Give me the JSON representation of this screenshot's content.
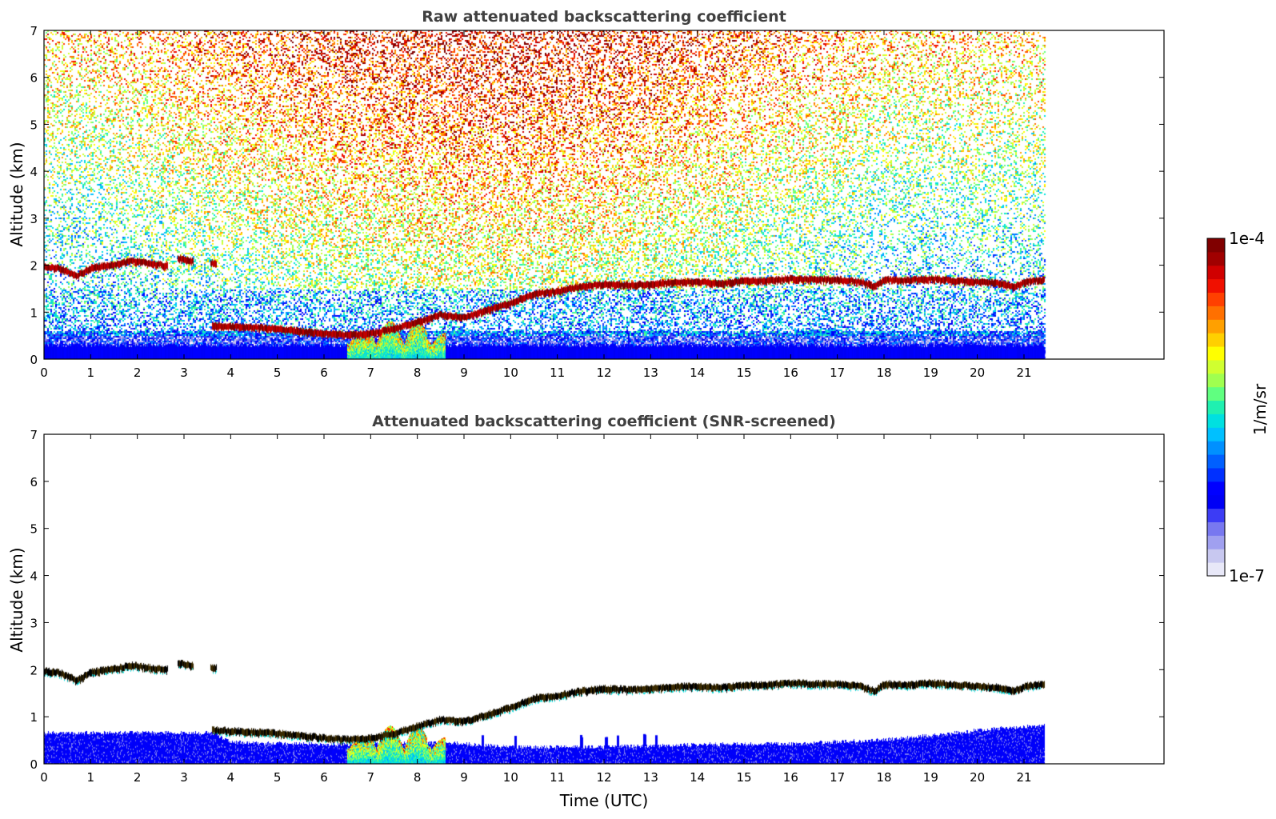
{
  "chart_data": [
    {
      "type": "heatmap",
      "title": "Raw attenuated backscattering coefficient",
      "xlabel": "",
      "ylabel": "Altitude (km)",
      "xlim": [
        0,
        24
      ],
      "ylim": [
        0,
        7
      ],
      "x_ticks": [
        "0",
        "1",
        "2",
        "3",
        "4",
        "5",
        "6",
        "7",
        "8",
        "9",
        "10",
        "11",
        "12",
        "13",
        "14",
        "15",
        "16",
        "17",
        "18",
        "19",
        "20",
        "21"
      ],
      "y_ticks": [
        "0",
        "1",
        "2",
        "3",
        "4",
        "5",
        "6",
        "7"
      ],
      "data_end_time": 21.45,
      "noise": "high-altitude background noise (daytime solar), strongest between ~7 and ~17 UTC",
      "cloud_layer_km": {
        "time": [
          0,
          0.3,
          0.7,
          1.0,
          1.5,
          1.9,
          2.2,
          2.6,
          2.9,
          3.1,
          3.6,
          3.7
        ],
        "altitude": [
          1.97,
          1.95,
          1.78,
          1.95,
          2.02,
          2.1,
          2.05,
          2.0,
          2.15,
          2.1,
          2.05,
          2.03
        ]
      },
      "low_layer_km": {
        "time": [
          3.6,
          4.0,
          4.5,
          5.0,
          5.5,
          6.0,
          6.5,
          7.0,
          7.5,
          8.0,
          8.5,
          9.0,
          9.5,
          10.0,
          10.5,
          11.0,
          11.5,
          12.0,
          12.5,
          13.0,
          13.5,
          14.0,
          14.5,
          15.0,
          15.5,
          16.0,
          16.5,
          17.0,
          17.5,
          17.8,
          18.0,
          18.5,
          19.0,
          19.5,
          20.0,
          20.5,
          20.8,
          21.0,
          21.45
        ],
        "altitude": [
          0.72,
          0.7,
          0.68,
          0.65,
          0.6,
          0.55,
          0.52,
          0.55,
          0.65,
          0.8,
          0.95,
          0.9,
          1.05,
          1.2,
          1.4,
          1.45,
          1.55,
          1.6,
          1.58,
          1.6,
          1.65,
          1.65,
          1.62,
          1.67,
          1.68,
          1.72,
          1.7,
          1.7,
          1.65,
          1.55,
          1.7,
          1.68,
          1.72,
          1.68,
          1.65,
          1.62,
          1.55,
          1.65,
          1.7
        ]
      },
      "aerosol_region": {
        "time": [
          6.5,
          8.6
        ],
        "altitude": [
          0,
          0.8
        ]
      }
    },
    {
      "type": "heatmap",
      "title": "Attenuated backscattering coefficient (SNR-screened)",
      "xlabel": "Time (UTC)",
      "ylabel": "Altitude (km)",
      "xlim": [
        0,
        24
      ],
      "ylim": [
        0,
        7
      ],
      "x_ticks": [
        "0",
        "1",
        "2",
        "3",
        "4",
        "5",
        "6",
        "7",
        "8",
        "9",
        "10",
        "11",
        "12",
        "13",
        "14",
        "15",
        "16",
        "17",
        "18",
        "19",
        "20",
        "21"
      ],
      "y_ticks": [
        "0",
        "1",
        "2",
        "3",
        "4",
        "5",
        "6",
        "7"
      ],
      "data_end_time": 21.45,
      "boundary_layer_top_km": {
        "time": [
          0,
          3.6,
          4.0,
          6.0,
          8.6,
          10.0,
          12.0,
          14.0,
          16.0,
          18.0,
          19.5,
          20.5,
          21.45
        ],
        "altitude": [
          0.65,
          0.65,
          0.45,
          0.4,
          0.45,
          0.35,
          0.35,
          0.4,
          0.42,
          0.5,
          0.65,
          0.75,
          0.8
        ]
      }
    }
  ],
  "colorbar": {
    "label": "1/m/sr",
    "max_label": "1e-4",
    "min_label": "1e-7",
    "colors": [
      "#e8e8f8",
      "#c8c8f0",
      "#a0a0f0",
      "#7878f0",
      "#3c3cf5",
      "#0000f5",
      "#0000ff",
      "#0030ff",
      "#0060ff",
      "#0090ff",
      "#00c0ff",
      "#00e0e0",
      "#20f0b0",
      "#60ff80",
      "#a0ff50",
      "#d0ff30",
      "#ffff00",
      "#ffd000",
      "#ffa000",
      "#ff7000",
      "#ff4000",
      "#f01000",
      "#d00000",
      "#a00000",
      "#800000"
    ]
  }
}
